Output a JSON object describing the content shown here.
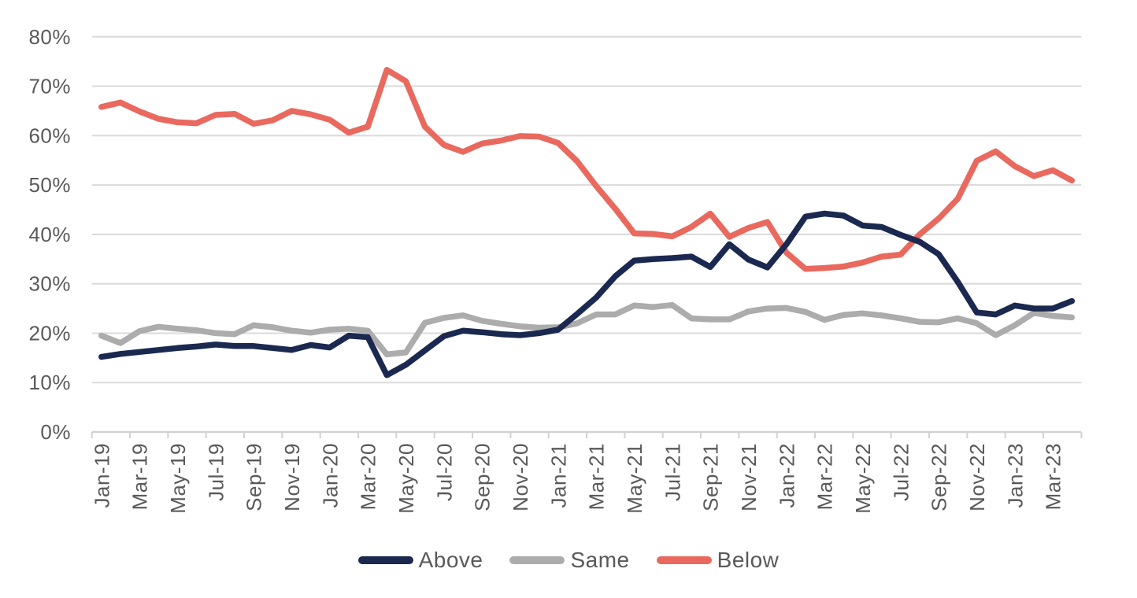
{
  "page": {
    "background": "#ffffff"
  },
  "chart_data": {
    "type": "line",
    "title": "",
    "xlabel": "",
    "ylabel": "",
    "grid": "horizontal",
    "legend_position": "bottom",
    "x": [
      "Jan-19",
      "Feb-19",
      "Mar-19",
      "Apr-19",
      "May-19",
      "Jun-19",
      "Jul-19",
      "Aug-19",
      "Sep-19",
      "Oct-19",
      "Nov-19",
      "Dec-19",
      "Jan-20",
      "Feb-20",
      "Mar-20",
      "Apr-20",
      "May-20",
      "Jun-20",
      "Jul-20",
      "Aug-20",
      "Sep-20",
      "Oct-20",
      "Nov-20",
      "Dec-20",
      "Jan-21",
      "Feb-21",
      "Mar-21",
      "Apr-21",
      "May-21",
      "Jun-21",
      "Jul-21",
      "Aug-21",
      "Sep-21",
      "Oct-21",
      "Nov-21",
      "Dec-21",
      "Jan-22",
      "Feb-22",
      "Mar-22",
      "Apr-22",
      "May-22",
      "Jun-22",
      "Jul-22",
      "Aug-22",
      "Sep-22",
      "Oct-22",
      "Nov-22",
      "Dec-22",
      "Jan-23",
      "Feb-23",
      "Mar-23",
      "Apr-23"
    ],
    "x_tick_labels": [
      "Jan-19",
      "Mar-19",
      "May-19",
      "Jul-19",
      "Sep-19",
      "Nov-19",
      "Jan-20",
      "Mar-20",
      "May-20",
      "Jul-20",
      "Sep-20",
      "Nov-20",
      "Jan-21",
      "Mar-21",
      "May-21",
      "Jul-21",
      "Sep-21",
      "Nov-21",
      "Jan-22",
      "Mar-22",
      "May-22",
      "Jul-22",
      "Sep-22",
      "Nov-22",
      "Jan-23",
      "Mar-23"
    ],
    "y_axis": {
      "min": 0,
      "max": 80,
      "step": 10,
      "tick_suffix": "%",
      "tick_labels": [
        "0%",
        "10%",
        "20%",
        "30%",
        "40%",
        "50%",
        "60%",
        "70%",
        "80%"
      ]
    },
    "series": [
      {
        "name": "Above",
        "color": "#1b2950",
        "values": [
          15.2,
          15.8,
          16.2,
          16.6,
          17.0,
          17.3,
          17.7,
          17.4,
          17.4,
          17.0,
          16.6,
          17.6,
          17.1,
          19.5,
          19.2,
          11.5,
          13.6,
          16.5,
          19.4,
          20.5,
          20.2,
          19.8,
          19.6,
          20.0,
          20.7,
          23.9,
          27.2,
          31.5,
          34.7,
          35.0,
          35.2,
          35.5,
          33.4,
          38.0,
          34.9,
          33.3,
          38.0,
          43.6,
          44.2,
          43.8,
          41.8,
          41.5,
          39.9,
          38.5,
          36.0,
          30.4,
          24.2,
          23.8,
          25.6,
          25.0,
          25.0,
          26.5
        ]
      },
      {
        "name": "Same",
        "color": "#acacac",
        "values": [
          19.5,
          18.0,
          20.4,
          21.3,
          20.9,
          20.6,
          20.0,
          19.8,
          21.6,
          21.2,
          20.5,
          20.1,
          20.7,
          20.9,
          20.5,
          15.7,
          16.1,
          22.1,
          23.1,
          23.6,
          22.5,
          21.9,
          21.4,
          21.1,
          21.2,
          22.0,
          23.8,
          23.8,
          25.6,
          25.3,
          25.7,
          23.0,
          22.8,
          22.8,
          24.4,
          25.0,
          25.1,
          24.3,
          22.7,
          23.7,
          24.0,
          23.6,
          23.0,
          22.3,
          22.2,
          23.0,
          22.0,
          19.6,
          21.6,
          24.1,
          23.5,
          23.2
        ]
      },
      {
        "name": "Below",
        "color": "#e9695f",
        "values": [
          65.8,
          66.7,
          64.9,
          63.4,
          62.7,
          62.5,
          64.2,
          64.4,
          62.4,
          63.1,
          65.0,
          64.3,
          63.2,
          60.6,
          61.8,
          73.3,
          71.0,
          61.8,
          58.1,
          56.7,
          58.4,
          59.0,
          59.9,
          59.8,
          58.5,
          54.8,
          49.8,
          45.2,
          40.2,
          40.1,
          39.6,
          41.5,
          44.2,
          39.5,
          41.3,
          42.5,
          36.3,
          33.0,
          33.2,
          33.5,
          34.3,
          35.5,
          35.9,
          40.0,
          43.2,
          47.2,
          54.9,
          56.8,
          53.8,
          51.8,
          53.0,
          50.9
        ]
      }
    ],
    "colors": {
      "grid": "#dadada",
      "axis": "#d2d2d2",
      "text": "#595959"
    }
  }
}
